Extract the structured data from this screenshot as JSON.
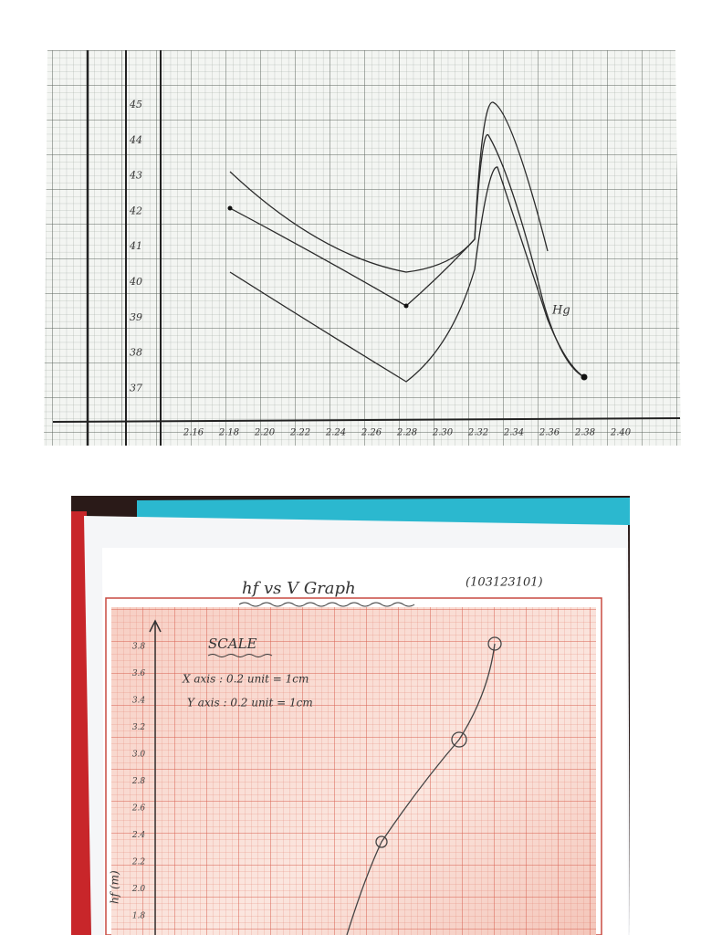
{
  "top_graph": {
    "y_labels": [
      "45",
      "44",
      "43",
      "42",
      "41",
      "40",
      "39",
      "38",
      "37"
    ],
    "x_labels": [
      "2.16",
      "2.18",
      "2.20",
      "2.22",
      "2.24",
      "2.26",
      "2.28",
      "2.30",
      "2.32",
      "2.34",
      "2.36",
      "2.38",
      "2.40"
    ],
    "annotation": "Hg"
  },
  "bottom_graph": {
    "title": "hf vs V Graph",
    "roll_number": "(103123101)",
    "scale_heading": "SCALE",
    "scale_x": "X axis : 0.2 unit = 1cm",
    "scale_y": "Y axis : 0.2 unit = 1cm",
    "y_labels": [
      "3.8",
      "3.6",
      "3.4",
      "3.2",
      "3.0",
      "2.8",
      "2.6",
      "2.4",
      "2.2",
      "2.0",
      "1.8"
    ],
    "y_axis_label": "hf (m)"
  }
}
